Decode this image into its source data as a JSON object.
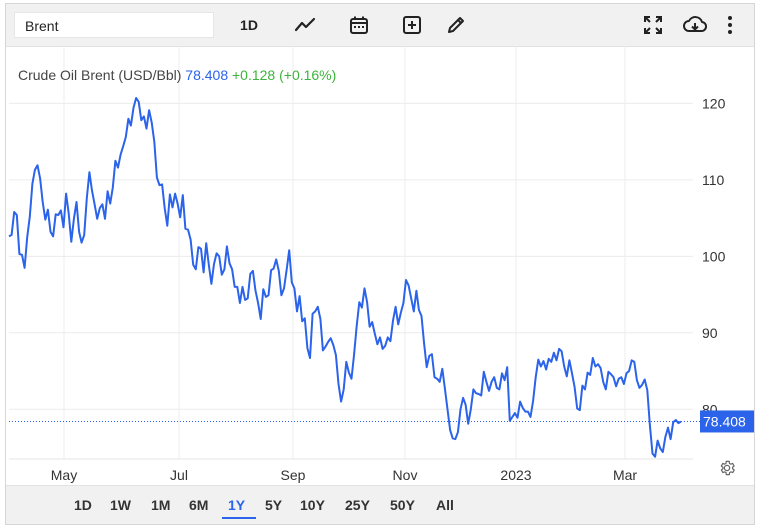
{
  "toolbar": {
    "search_value": "Brent",
    "interval_label": "1D",
    "icons": [
      "line-chart-icon",
      "calendar-icon",
      "add-indicator-icon",
      "draw-icon",
      "fullscreen-icon",
      "download-icon",
      "more-icon"
    ]
  },
  "legend": {
    "name": "Crude Oil Brent (USD/Bbl)",
    "value": "78.408",
    "change": "+0.128 (+0.16%)"
  },
  "ranges": [
    "1D",
    "1W",
    "1M",
    "6M",
    "1Y",
    "5Y",
    "10Y",
    "25Y",
    "50Y",
    "All"
  ],
  "active_range": "1Y",
  "colors": {
    "line": "#2b63ea",
    "grid": "#ececec",
    "up": "#3db33d",
    "badge_bg": "#2b63ea"
  },
  "chart_data": {
    "type": "line",
    "title": "Crude Oil Brent (USD/Bbl)",
    "xlabel": "",
    "ylabel": "",
    "ylim": [
      73.5,
      127.5
    ],
    "y_ticks": [
      80,
      90,
      100,
      110,
      120
    ],
    "x_ticks": [
      "May",
      "Jul",
      "Sep",
      "Nov",
      "2023",
      "Mar"
    ],
    "last_value": 78.408,
    "grid": true,
    "series": [
      {
        "values": [
          102.6,
          102.8,
          105.8,
          105.4,
          100.3,
          100.2,
          98.5,
          102.5,
          105.2,
          109.5,
          111.3,
          111.9,
          110.2,
          107.1,
          104.8,
          106.1,
          103.2,
          102.6,
          105.5,
          105.4,
          106.0,
          103.8,
          108.2,
          105.6,
          101.9,
          104.9,
          107.1,
          103.2,
          101.8,
          102.8,
          107.6,
          111.0,
          108.6,
          106.8,
          104.9,
          106.3,
          106.8,
          104.9,
          108.5,
          106.9,
          109.0,
          112.5,
          111.6,
          113.3,
          114.4,
          115.6,
          118.0,
          117.1,
          119.4,
          120.7,
          120.2,
          117.8,
          118.3,
          116.7,
          119.1,
          117.5,
          115.0,
          110.3,
          109.3,
          109.4,
          106.3,
          104.0,
          108.1,
          106.4,
          108.2,
          106.9,
          105.1,
          108.0,
          103.6,
          103.5,
          102.2,
          98.9,
          98.3,
          101.2,
          101.0,
          97.9,
          101.7,
          98.9,
          96.4,
          99.0,
          100.4,
          100.0,
          97.6,
          98.3,
          101.3,
          99.1,
          98.3,
          96.0,
          96.0,
          93.9,
          96.0,
          94.3,
          94.5,
          97.7,
          98.1,
          95.5,
          93.9,
          91.8,
          95.7,
          94.7,
          94.9,
          98.2,
          98.4,
          99.6,
          98.1,
          94.9,
          95.8,
          98.2,
          100.8,
          96.6,
          95.8,
          92.8,
          94.8,
          91.5,
          91.9,
          88.0,
          86.7,
          92.5,
          92.8,
          93.4,
          91.8,
          87.7,
          88.2,
          88.8,
          89.3,
          88.4,
          87.1,
          83.3,
          81.0,
          82.6,
          86.2,
          84.8,
          84.0,
          87.2,
          90.9,
          94.0,
          93.3,
          95.8,
          94.0,
          90.8,
          91.4,
          89.9,
          88.5,
          89.4,
          87.9,
          88.3,
          89.4,
          88.9,
          91.6,
          93.4,
          91.1,
          92.6,
          93.9,
          96.9,
          96.2,
          94.5,
          92.8,
          95.5,
          93.0,
          92.2,
          88.6,
          85.5,
          87.0,
          87.2,
          84.2,
          84.0,
          83.6,
          85.3,
          82.7,
          80.0,
          77.3,
          76.2,
          76.1,
          77.0,
          80.0,
          81.5,
          80.6,
          78.1,
          80.0,
          82.6,
          82.1,
          82.0,
          81.8,
          84.9,
          83.6,
          82.4,
          83.6,
          84.2,
          82.8,
          82.6,
          84.7,
          83.8,
          85.5,
          78.5,
          79.0,
          79.5,
          78.9,
          81.0,
          80.2,
          79.7,
          79.7,
          79.0,
          81.1,
          84.2,
          86.5,
          85.6,
          86.3,
          85.2,
          86.6,
          86.2,
          87.4,
          86.4,
          87.9,
          87.6,
          85.6,
          84.3,
          86.4,
          84.7,
          82.9,
          80.1,
          79.9,
          83.1,
          82.6,
          84.8,
          84.5,
          86.7,
          85.6,
          85.9,
          85.4,
          83.6,
          82.6,
          84.9,
          84.6,
          84.2,
          83.0,
          84.0,
          84.2,
          83.3,
          84.7,
          85.0,
          86.4,
          86.2,
          83.8,
          82.8,
          83.2,
          83.9,
          82.5,
          77.9,
          74.2,
          73.8,
          75.9,
          74.9,
          74.4,
          76.4,
          77.6,
          76.1,
          78.3,
          78.6,
          78.2,
          78.4
        ]
      }
    ]
  }
}
